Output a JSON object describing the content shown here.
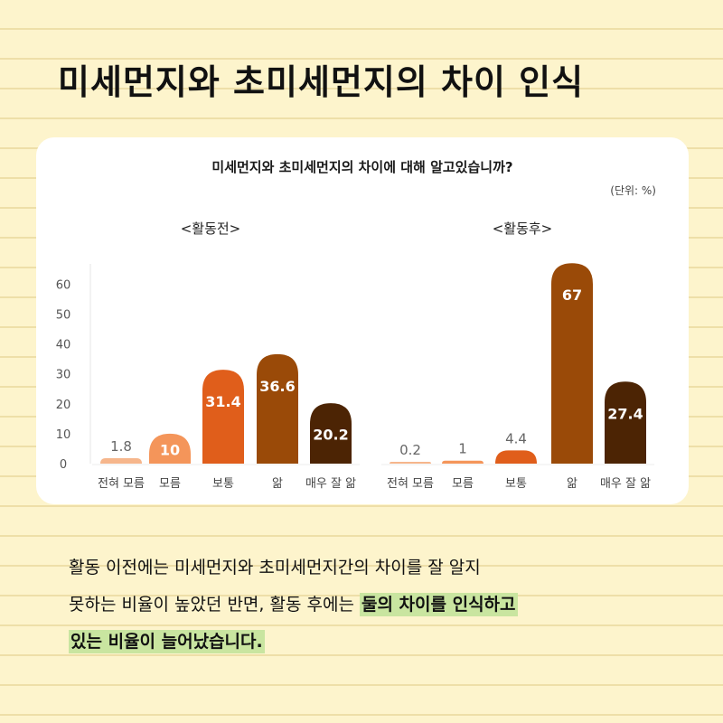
{
  "page": {
    "title": "미세먼지와 초미세먼지의 차이 인식"
  },
  "card": {
    "question": "미세먼지와 초미세먼지의 차이에 대해 알고있습니까?",
    "unit": "(단위: %)"
  },
  "text": {
    "line1": "활동 이전에는 미세먼지와 초미세먼지간의 차이를 잘 알지",
    "line2_plain": "못하는 비율이 높았던 반면, 활동 후에는 ",
    "highlight_part1": "둘의 차이를 인식하고",
    "highlight_part2": "있는 비율이 늘어났습니다."
  },
  "colors": {
    "background": "#fdf4cc",
    "category_colors": [
      "#f6b68c",
      "#f4955a",
      "#e05e1b",
      "#9a4a08",
      "#4c2404"
    ]
  },
  "chart_data": [
    {
      "type": "bar",
      "title": "<활동전>",
      "categories": [
        "전혀 모름",
        "모름",
        "보통",
        "앎",
        "매우 잘 앎"
      ],
      "values": [
        1.8,
        10,
        31.4,
        36.6,
        20.2
      ],
      "ylim": [
        0,
        60
      ],
      "yticks": [
        0,
        10,
        20,
        30,
        40,
        50,
        60
      ],
      "grid": false
    },
    {
      "type": "bar",
      "title": "<활동후>",
      "categories": [
        "전혀 모름",
        "모름",
        "보통",
        "앎",
        "매우 잘 앎"
      ],
      "values": [
        0.2,
        1,
        4.4,
        67,
        27.4
      ],
      "grid": false
    }
  ]
}
